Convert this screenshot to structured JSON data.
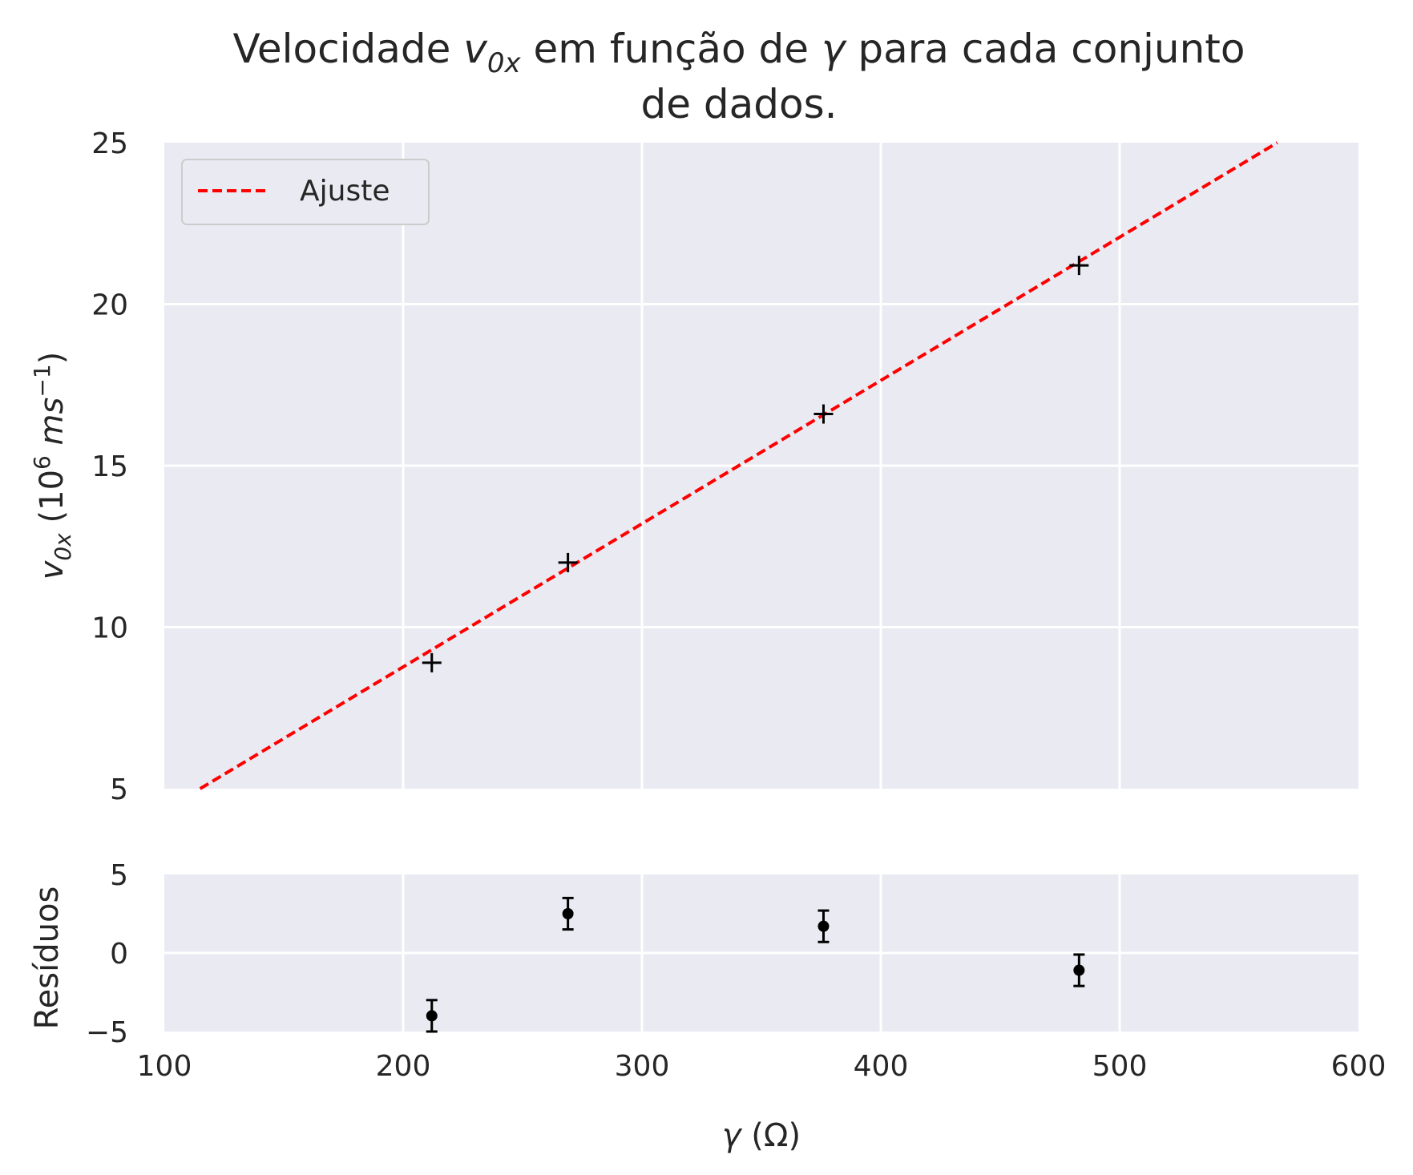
{
  "chart_data": [
    {
      "type": "scatter",
      "panel": "main",
      "title": "Velocidade v0x em função de γ para cada conjunto de dados.",
      "title_lines": [
        "Velocidade v0x em função de γ para cada conjunto",
        "de dados."
      ],
      "ylabel": "v0x (10^6 ms^-1)",
      "xlim": [
        100,
        600
      ],
      "ylim": [
        5,
        25
      ],
      "yticks": [
        "5",
        "10",
        "15",
        "20",
        "25"
      ],
      "grid": true,
      "legend": {
        "placement": "upper-left",
        "entries": [
          "Ajuste"
        ]
      },
      "points": {
        "marker": "+",
        "color": "#000000",
        "x": [
          212,
          269,
          376,
          483
        ],
        "y": [
          8.9,
          12.0,
          16.6,
          21.2
        ]
      },
      "fit_line": {
        "name": "Ajuste",
        "style": "dashed",
        "color": "#ff0000",
        "x": [
          115,
          566
        ],
        "y": [
          5.0,
          25.0
        ]
      }
    },
    {
      "type": "scatter",
      "panel": "residuals",
      "ylabel": "Resíduos",
      "xlabel": "γ (Ω)",
      "xlim": [
        100,
        600
      ],
      "ylim": [
        -5,
        5
      ],
      "xticks": [
        "100",
        "200",
        "300",
        "400",
        "500",
        "600"
      ],
      "yticks": [
        "−5",
        "0",
        "5"
      ],
      "grid": true,
      "points": {
        "marker": "o",
        "color": "#000000",
        "x": [
          212,
          269,
          376,
          483
        ],
        "y": [
          -4.0,
          2.5,
          1.7,
          -1.1
        ],
        "yerr": [
          1.0,
          1.0,
          1.0,
          1.0
        ]
      }
    }
  ]
}
